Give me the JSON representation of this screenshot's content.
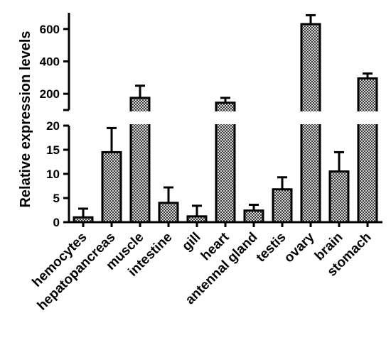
{
  "chart_data": {
    "type": "bar",
    "ylabel": "Relative expression levels",
    "y_scale": "broken",
    "lower_segment": {
      "ylim": [
        0,
        20
      ],
      "ticks": [
        0,
        5,
        10,
        15,
        20
      ]
    },
    "upper_segment": {
      "ylim": [
        100,
        700
      ],
      "ticks": [
        200,
        400,
        600
      ]
    },
    "categories": [
      "hemocytes",
      "hepatopancreas",
      "muscle",
      "intestine",
      "gill",
      "heart",
      "antennal gland",
      "testis",
      "ovary",
      "brain",
      "stomach"
    ],
    "series": [
      {
        "values": [
          1,
          14.5,
          175,
          4,
          1.2,
          145,
          2.4,
          6.8,
          630,
          10.5,
          295
        ],
        "errors": [
          1.8,
          5,
          75,
          3.2,
          2.2,
          30,
          1.2,
          2.5,
          55,
          4,
          30
        ]
      }
    ],
    "bar_fill": "checkered gray",
    "grid": false,
    "legend": "none"
  }
}
